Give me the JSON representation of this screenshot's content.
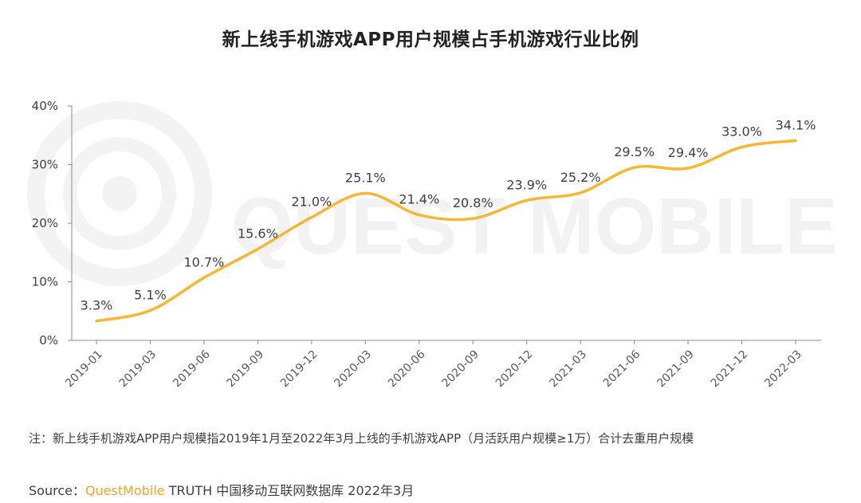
{
  "chart_data": {
    "type": "line",
    "title": "新上线手机游戏APP用户规模占手机游戏行业比例",
    "categories": [
      "2019-01",
      "2019-03",
      "2019-06",
      "2019-09",
      "2019-12",
      "2020-03",
      "2020-06",
      "2020-09",
      "2020-12",
      "2021-03",
      "2021-06",
      "2021-09",
      "2021-12",
      "2022-03"
    ],
    "values": [
      3.3,
      5.1,
      10.7,
      15.6,
      21.0,
      25.1,
      21.4,
      20.8,
      23.9,
      25.2,
      29.5,
      29.4,
      33.0,
      34.1
    ],
    "value_labels": [
      "3.3%",
      "5.1%",
      "10.7%",
      "15.6%",
      "21.0%",
      "25.1%",
      "21.4%",
      "20.8%",
      "23.9%",
      "25.2%",
      "29.5%",
      "29.4%",
      "33.0%",
      "34.1%"
    ],
    "y_ticks": [
      0,
      10,
      20,
      30,
      40
    ],
    "y_tick_labels": [
      "0%",
      "10%",
      "20%",
      "30%",
      "40%"
    ],
    "ylim": [
      0,
      40
    ],
    "xlabel": "",
    "ylabel": "",
    "line_color": "#F7B731",
    "grid": false
  },
  "watermark": "QUEST MOBILE",
  "note": "注：新上线手机游戏APP用户规模指2019年1月至2022年3月上线的手机游戏APP（月活跃用户规模≥1万）合计去重用户规模",
  "source": {
    "prefix": "Source：",
    "brand": "QuestMobile",
    "rest": " TRUTH 中国移动互联网数据库 2022年3月"
  }
}
